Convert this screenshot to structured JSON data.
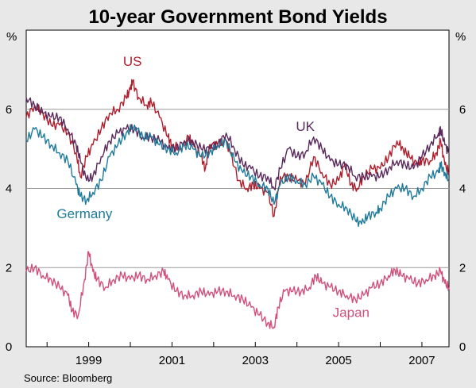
{
  "chart_data": {
    "type": "line",
    "title": "10-year Government Bond Yields",
    "unit_left": "%",
    "unit_right": "%",
    "source": "Source: Bloomberg",
    "x_range": [
      1997.5,
      2007.65
    ],
    "ylim": [
      0,
      8
    ],
    "y_ticks": [
      0,
      2,
      4,
      6
    ],
    "x_ticks": [
      1999,
      2001,
      2003,
      2005,
      2007
    ],
    "x_tick_labels": [
      "1999",
      "2001",
      "2003",
      "2005",
      "2007"
    ],
    "y_tick_labels": [
      "0",
      "2",
      "4",
      "6"
    ],
    "grid": true,
    "series": [
      {
        "name": "US",
        "color": "#b01e2d",
        "points": [
          [
            1997.5,
            5.8
          ],
          [
            1997.7,
            6.1
          ],
          [
            1997.9,
            5.9
          ],
          [
            1998.1,
            5.6
          ],
          [
            1998.3,
            5.6
          ],
          [
            1998.5,
            5.4
          ],
          [
            1998.7,
            4.9
          ],
          [
            1998.8,
            4.3
          ],
          [
            1998.95,
            4.8
          ],
          [
            1999.1,
            5.1
          ],
          [
            1999.3,
            5.5
          ],
          [
            1999.5,
            5.9
          ],
          [
            1999.7,
            6.0
          ],
          [
            1999.9,
            6.3
          ],
          [
            2000.0,
            6.5
          ],
          [
            2000.05,
            6.7
          ],
          [
            2000.2,
            6.3
          ],
          [
            2000.4,
            6.1
          ],
          [
            2000.5,
            6.2
          ],
          [
            2000.7,
            5.8
          ],
          [
            2000.9,
            5.3
          ],
          [
            2001.0,
            5.1
          ],
          [
            2001.2,
            5.0
          ],
          [
            2001.4,
            5.3
          ],
          [
            2001.5,
            5.1
          ],
          [
            2001.7,
            4.8
          ],
          [
            2001.8,
            4.5
          ],
          [
            2001.9,
            5.1
          ],
          [
            2002.1,
            5.1
          ],
          [
            2002.3,
            5.2
          ],
          [
            2002.4,
            4.9
          ],
          [
            2002.6,
            4.2
          ],
          [
            2002.8,
            4.0
          ],
          [
            2002.95,
            4.1
          ],
          [
            2003.1,
            4.0
          ],
          [
            2003.3,
            3.9
          ],
          [
            2003.45,
            3.3
          ],
          [
            2003.6,
            4.3
          ],
          [
            2003.8,
            4.3
          ],
          [
            2004.0,
            4.2
          ],
          [
            2004.2,
            4.1
          ],
          [
            2004.4,
            4.8
          ],
          [
            2004.6,
            4.4
          ],
          [
            2004.8,
            4.1
          ],
          [
            2005.0,
            4.2
          ],
          [
            2005.15,
            4.6
          ],
          [
            2005.3,
            4.1
          ],
          [
            2005.45,
            4.0
          ],
          [
            2005.6,
            4.3
          ],
          [
            2005.8,
            4.5
          ],
          [
            2006.0,
            4.5
          ],
          [
            2006.2,
            4.8
          ],
          [
            2006.4,
            5.2
          ],
          [
            2006.55,
            5.0
          ],
          [
            2006.7,
            4.8
          ],
          [
            2006.9,
            4.6
          ],
          [
            2007.0,
            4.7
          ],
          [
            2007.2,
            4.7
          ],
          [
            2007.35,
            4.9
          ],
          [
            2007.45,
            5.2
          ],
          [
            2007.55,
            4.6
          ],
          [
            2007.65,
            4.4
          ]
        ]
      },
      {
        "name": "UK",
        "color": "#5a2a5c",
        "points": [
          [
            1997.5,
            6.3
          ],
          [
            1997.7,
            6.1
          ],
          [
            1997.9,
            5.9
          ],
          [
            1998.1,
            5.8
          ],
          [
            1998.3,
            5.8
          ],
          [
            1998.5,
            5.5
          ],
          [
            1998.7,
            5.1
          ],
          [
            1998.8,
            4.7
          ],
          [
            1998.95,
            4.2
          ],
          [
            1999.1,
            4.3
          ],
          [
            1999.3,
            4.8
          ],
          [
            1999.5,
            5.2
          ],
          [
            1999.7,
            5.4
          ],
          [
            1999.9,
            5.5
          ],
          [
            2000.1,
            5.5
          ],
          [
            2000.3,
            5.3
          ],
          [
            2000.5,
            5.3
          ],
          [
            2000.7,
            5.2
          ],
          [
            2000.9,
            5.0
          ],
          [
            2001.1,
            5.0
          ],
          [
            2001.3,
            5.2
          ],
          [
            2001.5,
            5.2
          ],
          [
            2001.7,
            5.0
          ],
          [
            2001.9,
            5.0
          ],
          [
            2002.1,
            5.1
          ],
          [
            2002.3,
            5.4
          ],
          [
            2002.5,
            5.0
          ],
          [
            2002.7,
            4.6
          ],
          [
            2002.9,
            4.5
          ],
          [
            2003.1,
            4.3
          ],
          [
            2003.3,
            4.3
          ],
          [
            2003.45,
            4.0
          ],
          [
            2003.6,
            4.5
          ],
          [
            2003.8,
            5.0
          ],
          [
            2004.0,
            4.8
          ],
          [
            2004.2,
            4.9
          ],
          [
            2004.4,
            5.3
          ],
          [
            2004.6,
            5.0
          ],
          [
            2004.8,
            4.7
          ],
          [
            2005.0,
            4.6
          ],
          [
            2005.2,
            4.6
          ],
          [
            2005.4,
            4.3
          ],
          [
            2005.6,
            4.3
          ],
          [
            2005.8,
            4.3
          ],
          [
            2006.0,
            4.3
          ],
          [
            2006.2,
            4.5
          ],
          [
            2006.4,
            4.7
          ],
          [
            2006.6,
            4.6
          ],
          [
            2006.8,
            4.5
          ],
          [
            2007.0,
            4.8
          ],
          [
            2007.2,
            5.1
          ],
          [
            2007.4,
            5.4
          ],
          [
            2007.45,
            5.5
          ],
          [
            2007.55,
            5.1
          ],
          [
            2007.65,
            4.9
          ]
        ]
      },
      {
        "name": "Germany",
        "color": "#1f7a9c",
        "points": [
          [
            1997.5,
            5.2
          ],
          [
            1997.7,
            5.5
          ],
          [
            1997.9,
            5.3
          ],
          [
            1998.1,
            5.1
          ],
          [
            1998.3,
            4.9
          ],
          [
            1998.5,
            4.7
          ],
          [
            1998.7,
            4.1
          ],
          [
            1998.8,
            3.8
          ],
          [
            1998.95,
            3.7
          ],
          [
            1999.1,
            3.9
          ],
          [
            1999.3,
            4.2
          ],
          [
            1999.5,
            4.8
          ],
          [
            1999.7,
            5.1
          ],
          [
            1999.9,
            5.4
          ],
          [
            2000.1,
            5.6
          ],
          [
            2000.3,
            5.3
          ],
          [
            2000.5,
            5.3
          ],
          [
            2000.7,
            5.1
          ],
          [
            2000.9,
            5.0
          ],
          [
            2001.1,
            4.9
          ],
          [
            2001.3,
            5.1
          ],
          [
            2001.5,
            5.0
          ],
          [
            2001.7,
            4.8
          ],
          [
            2001.9,
            4.9
          ],
          [
            2002.1,
            5.1
          ],
          [
            2002.3,
            5.2
          ],
          [
            2002.5,
            4.7
          ],
          [
            2002.7,
            4.4
          ],
          [
            2002.9,
            4.3
          ],
          [
            2003.1,
            4.1
          ],
          [
            2003.3,
            4.0
          ],
          [
            2003.45,
            3.6
          ],
          [
            2003.6,
            4.1
          ],
          [
            2003.8,
            4.3
          ],
          [
            2004.0,
            4.2
          ],
          [
            2004.2,
            4.1
          ],
          [
            2004.4,
            4.3
          ],
          [
            2004.6,
            4.1
          ],
          [
            2004.8,
            3.8
          ],
          [
            2005.0,
            3.6
          ],
          [
            2005.2,
            3.5
          ],
          [
            2005.4,
            3.2
          ],
          [
            2005.55,
            3.1
          ],
          [
            2005.7,
            3.3
          ],
          [
            2005.9,
            3.4
          ],
          [
            2006.0,
            3.5
          ],
          [
            2006.2,
            3.8
          ],
          [
            2006.4,
            4.0
          ],
          [
            2006.6,
            4.0
          ],
          [
            2006.8,
            3.8
          ],
          [
            2007.0,
            4.0
          ],
          [
            2007.2,
            4.3
          ],
          [
            2007.4,
            4.4
          ],
          [
            2007.45,
            4.6
          ],
          [
            2007.55,
            4.4
          ],
          [
            2007.65,
            4.2
          ]
        ]
      },
      {
        "name": "Japan",
        "color": "#d0507a",
        "points": [
          [
            1997.5,
            1.9
          ],
          [
            1997.7,
            2.0
          ],
          [
            1997.9,
            1.8
          ],
          [
            1998.1,
            1.7
          ],
          [
            1998.3,
            1.5
          ],
          [
            1998.5,
            1.3
          ],
          [
            1998.6,
            0.9
          ],
          [
            1998.75,
            0.8
          ],
          [
            1998.9,
            1.7
          ],
          [
            1999.0,
            2.4
          ],
          [
            1999.1,
            1.9
          ],
          [
            1999.2,
            1.7
          ],
          [
            1999.4,
            1.5
          ],
          [
            1999.6,
            1.7
          ],
          [
            1999.8,
            1.8
          ],
          [
            2000.0,
            1.7
          ],
          [
            2000.2,
            1.8
          ],
          [
            2000.4,
            1.7
          ],
          [
            2000.6,
            1.8
          ],
          [
            2000.8,
            1.9
          ],
          [
            2000.9,
            1.7
          ],
          [
            2001.1,
            1.4
          ],
          [
            2001.3,
            1.3
          ],
          [
            2001.5,
            1.3
          ],
          [
            2001.7,
            1.4
          ],
          [
            2001.9,
            1.3
          ],
          [
            2002.1,
            1.4
          ],
          [
            2002.3,
            1.4
          ],
          [
            2002.5,
            1.3
          ],
          [
            2002.7,
            1.2
          ],
          [
            2002.9,
            1.0
          ],
          [
            2003.1,
            0.8
          ],
          [
            2003.3,
            0.6
          ],
          [
            2003.45,
            0.5
          ],
          [
            2003.55,
            1.0
          ],
          [
            2003.7,
            1.4
          ],
          [
            2003.9,
            1.4
          ],
          [
            2004.1,
            1.4
          ],
          [
            2004.3,
            1.5
          ],
          [
            2004.45,
            1.8
          ],
          [
            2004.6,
            1.6
          ],
          [
            2004.8,
            1.5
          ],
          [
            2005.0,
            1.4
          ],
          [
            2005.2,
            1.3
          ],
          [
            2005.4,
            1.2
          ],
          [
            2005.6,
            1.3
          ],
          [
            2005.8,
            1.5
          ],
          [
            2006.0,
            1.6
          ],
          [
            2006.2,
            1.8
          ],
          [
            2006.35,
            1.95
          ],
          [
            2006.5,
            1.8
          ],
          [
            2006.7,
            1.7
          ],
          [
            2006.9,
            1.6
          ],
          [
            2007.1,
            1.7
          ],
          [
            2007.3,
            1.8
          ],
          [
            2007.45,
            1.9
          ],
          [
            2007.55,
            1.6
          ],
          [
            2007.65,
            1.5
          ]
        ]
      }
    ]
  }
}
